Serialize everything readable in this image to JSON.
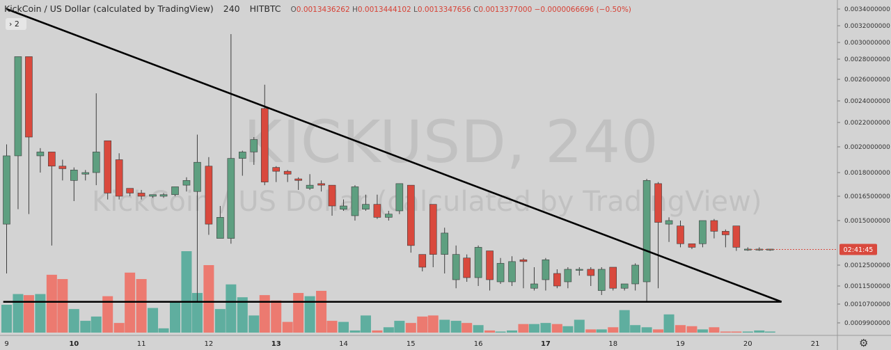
{
  "header": {
    "symbol_name": "KickCoin / US Dollar (calculated by TradingView)",
    "interval": "240",
    "exchange": "HITBTC",
    "o_label": "O",
    "o_value": "0.0013436262",
    "h_label": "H",
    "h_value": "0.0013444102",
    "l_label": "L",
    "l_value": "0.0013347656",
    "c_label": "C",
    "c_value": "0.0013377000",
    "change": "−0.0000066696 (−0.50%)"
  },
  "indicator_toggle": {
    "label": "› 2"
  },
  "watermark": {
    "line1": "KICKUSD, 240",
    "line2": "KickCoin / US Dollar (calculated by TradingView)"
  },
  "countdown": "02:41:45",
  "colors": {
    "up": "#5e9f80",
    "down": "#d9493d",
    "vol_up": "#5fae9f",
    "vol_down": "#ec7a70",
    "background": "#d3d3d3",
    "trendline": "#000000"
  },
  "settings_icon": "gear-icon",
  "chart_data": {
    "type": "candlestick",
    "title": "KickCoin / US Dollar (calculated by TradingView)",
    "interval": "240",
    "y_ticks": [
      "0.0034000000",
      "0.0032000000",
      "0.0030000000",
      "0.0028000000",
      "0.0026000000",
      "0.0024000000",
      "0.0022000000",
      "0.0020000000",
      "0.0018000000",
      "0.0016500000",
      "0.0015000000",
      "0.0012500000",
      "0.0011500000",
      "0.0010700000",
      "0.0009900000"
    ],
    "x_ticks": [
      "9",
      "10",
      "11",
      "12",
      "13",
      "14",
      "15",
      "16",
      "17",
      "18",
      "19",
      "20",
      "21"
    ],
    "ylim": [
      0.00094,
      0.0035
    ],
    "last_price": 0.0013377,
    "candles": [
      [
        9.0,
        0.00148,
        0.00193,
        0.00202,
        0.00121
      ],
      [
        9.17,
        0.00193,
        0.00283,
        0.00283,
        0.00157
      ],
      [
        9.33,
        0.00283,
        0.00208,
        0.00283,
        0.00154
      ],
      [
        9.5,
        0.00193,
        0.00196,
        0.00199,
        0.0018
      ],
      [
        9.67,
        0.00196,
        0.00185,
        0.00196,
        0.00136
      ],
      [
        9.83,
        0.00185,
        0.00183,
        0.0019,
        0.00175
      ],
      [
        10.0,
        0.00175,
        0.00182,
        0.00184,
        0.00162
      ],
      [
        10.17,
        0.00179,
        0.0018,
        0.00182,
        0.00175
      ],
      [
        10.33,
        0.0018,
        0.00196,
        0.00247,
        0.00172
      ],
      [
        10.5,
        0.00205,
        0.00167,
        0.00205,
        0.00163
      ],
      [
        10.67,
        0.0019,
        0.00165,
        0.00195,
        0.00163
      ],
      [
        10.83,
        0.0017,
        0.00167,
        0.0017,
        0.00165
      ],
      [
        11.0,
        0.00167,
        0.00165,
        0.00169,
        0.00163
      ],
      [
        11.17,
        0.00165,
        0.00166,
        0.00166,
        0.00164
      ],
      [
        11.33,
        0.00165,
        0.00166,
        0.00167,
        0.00164
      ],
      [
        11.5,
        0.00166,
        0.00171,
        0.00171,
        0.00165
      ],
      [
        11.67,
        0.00172,
        0.00175,
        0.00177,
        0.00168
      ],
      [
        11.83,
        0.00168,
        0.00188,
        0.0021,
        0.00108
      ],
      [
        12.0,
        0.00185,
        0.00148,
        0.00192,
        0.00142
      ],
      [
        12.17,
        0.0014,
        0.00152,
        0.00159,
        0.0014
      ],
      [
        12.33,
        0.0014,
        0.00191,
        0.0031,
        0.00137
      ],
      [
        12.5,
        0.00191,
        0.00196,
        0.00197,
        0.00178
      ],
      [
        12.67,
        0.00196,
        0.00206,
        0.00208,
        0.00186
      ],
      [
        12.83,
        0.00233,
        0.00174,
        0.00255,
        0.00172
      ],
      [
        13.0,
        0.00184,
        0.00181,
        0.00185,
        0.00174
      ],
      [
        13.17,
        0.00181,
        0.00179,
        0.00182,
        0.00174
      ],
      [
        13.33,
        0.00176,
        0.00175,
        0.00177,
        0.00169
      ],
      [
        13.5,
        0.0017,
        0.00172,
        0.00179,
        0.00169
      ],
      [
        13.67,
        0.00173,
        0.00172,
        0.00175,
        0.00168
      ],
      [
        13.83,
        0.00172,
        0.00159,
        0.00172,
        0.00153
      ],
      [
        14.0,
        0.00157,
        0.00159,
        0.00163,
        0.00156
      ],
      [
        14.17,
        0.00153,
        0.00171,
        0.00172,
        0.0015
      ],
      [
        14.33,
        0.00157,
        0.0016,
        0.00166,
        0.00156
      ],
      [
        14.5,
        0.0016,
        0.00152,
        0.00166,
        0.00151
      ],
      [
        14.67,
        0.00152,
        0.00154,
        0.00156,
        0.0015
      ],
      [
        14.83,
        0.00156,
        0.00173,
        0.00173,
        0.00154
      ],
      [
        15.0,
        0.00172,
        0.00136,
        0.00172,
        0.00132
      ],
      [
        15.17,
        0.00131,
        0.00124,
        0.00131,
        0.00122
      ],
      [
        15.33,
        0.0016,
        0.00131,
        0.0016,
        0.00124
      ],
      [
        15.5,
        0.00131,
        0.00143,
        0.00146,
        0.00121
      ],
      [
        15.67,
        0.00118,
        0.00131,
        0.00136,
        0.00114
      ],
      [
        15.83,
        0.00129,
        0.00119,
        0.00131,
        0.00117
      ],
      [
        16.0,
        0.00119,
        0.00135,
        0.00136,
        0.00115
      ],
      [
        16.17,
        0.00133,
        0.00118,
        0.00133,
        0.00113
      ],
      [
        16.33,
        0.00117,
        0.00126,
        0.00129,
        0.00116
      ],
      [
        16.5,
        0.00117,
        0.00127,
        0.0013,
        0.00115
      ],
      [
        16.67,
        0.00128,
        0.00127,
        0.00129,
        0.00114
      ],
      [
        16.83,
        0.00114,
        0.00116,
        0.00124,
        0.00113
      ],
      [
        17.0,
        0.00118,
        0.00128,
        0.00129,
        0.00113
      ],
      [
        17.17,
        0.00121,
        0.00115,
        0.00123,
        0.00114
      ],
      [
        17.33,
        0.00117,
        0.00123,
        0.00124,
        0.00114
      ],
      [
        17.5,
        0.00123,
        0.00123,
        0.00124,
        0.0012
      ],
      [
        17.67,
        0.00123,
        0.0012,
        0.00124,
        0.00115
      ],
      [
        17.83,
        0.00113,
        0.00123,
        0.00124,
        0.00111
      ],
      [
        18.0,
        0.00124,
        0.00114,
        0.00124,
        0.00113
      ],
      [
        18.17,
        0.00114,
        0.00116,
        0.00116,
        0.00113
      ],
      [
        18.33,
        0.00116,
        0.00125,
        0.00126,
        0.00113
      ],
      [
        18.5,
        0.00117,
        0.00175,
        0.00176,
        0.00108
      ],
      [
        18.67,
        0.00173,
        0.00149,
        0.00174,
        0.00114
      ],
      [
        18.83,
        0.00148,
        0.0015,
        0.00152,
        0.00138
      ],
      [
        19.0,
        0.00147,
        0.00137,
        0.0015,
        0.00135
      ],
      [
        19.17,
        0.00137,
        0.00135,
        0.00137,
        0.00134
      ],
      [
        19.33,
        0.00137,
        0.0015,
        0.0015,
        0.00135
      ],
      [
        19.5,
        0.0015,
        0.00144,
        0.00151,
        0.0014
      ],
      [
        19.67,
        0.00144,
        0.00142,
        0.00145,
        0.00135
      ],
      [
        19.83,
        0.00147,
        0.00135,
        0.00147,
        0.00133
      ],
      [
        20.0,
        0.00134,
        0.00134,
        0.00135,
        0.00133
      ],
      [
        20.17,
        0.00134,
        0.00134,
        0.00135,
        0.00133
      ],
      [
        20.33,
        0.00134,
        0.00134,
        0.00134,
        0.00133
      ]
    ],
    "volumes": [
      26,
      36,
      35,
      36,
      54,
      50,
      22,
      11,
      15,
      34,
      9,
      56,
      50,
      23,
      4,
      28,
      76,
      37,
      63,
      22,
      45,
      33,
      16,
      35,
      30,
      10,
      37,
      34,
      39,
      11,
      10,
      2,
      16,
      2,
      5,
      11,
      9,
      15,
      16,
      12,
      11,
      9,
      7,
      2,
      1,
      2,
      8,
      8,
      9,
      8,
      6,
      12,
      3,
      3,
      5,
      21,
      7,
      5,
      3,
      17,
      7,
      6,
      3,
      5,
      1,
      1,
      1,
      2,
      1
    ]
  },
  "trendlines": [
    {
      "name": "descending-trendline",
      "from": [
        9.0,
        0.0034
      ],
      "to": [
        20.5,
        0.00108
      ]
    },
    {
      "name": "support-line",
      "from": [
        8.95,
        0.00108
      ],
      "to": [
        20.5,
        0.00108
      ]
    }
  ]
}
